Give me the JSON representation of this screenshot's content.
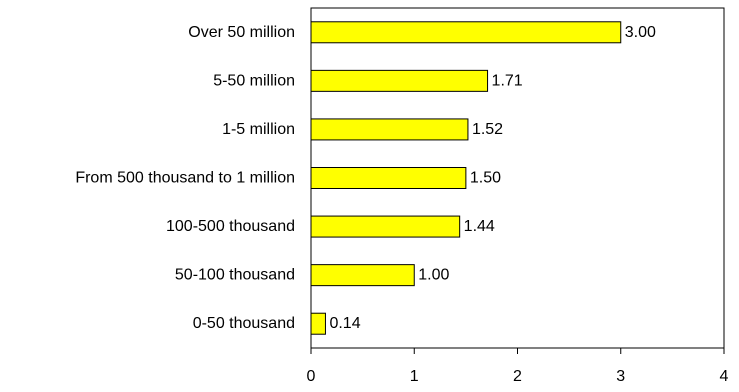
{
  "chart_data": {
    "type": "bar",
    "orientation": "horizontal",
    "title": "",
    "xlabel": "",
    "ylabel": "",
    "categories": [
      "Over 50 million",
      "5-50 million",
      "1-5 million",
      "From 500 thousand to 1 million",
      "100-500 thousand",
      "50-100 thousand",
      "0-50 thousand"
    ],
    "values": [
      3.0,
      1.71,
      1.52,
      1.5,
      1.44,
      1.0,
      0.14
    ],
    "value_labels": [
      "3.00",
      "1.71",
      "1.52",
      "1.50",
      "1.44",
      "1.00",
      "0.14"
    ],
    "xlim": [
      0,
      4
    ],
    "xticks": [
      0,
      1,
      2,
      3,
      4
    ],
    "xtick_labels": [
      "0",
      "1",
      "2",
      "3",
      "4"
    ],
    "grid": false,
    "legend": "none",
    "bar_color": "#ffff00",
    "bar_edge_color": "#000000"
  }
}
